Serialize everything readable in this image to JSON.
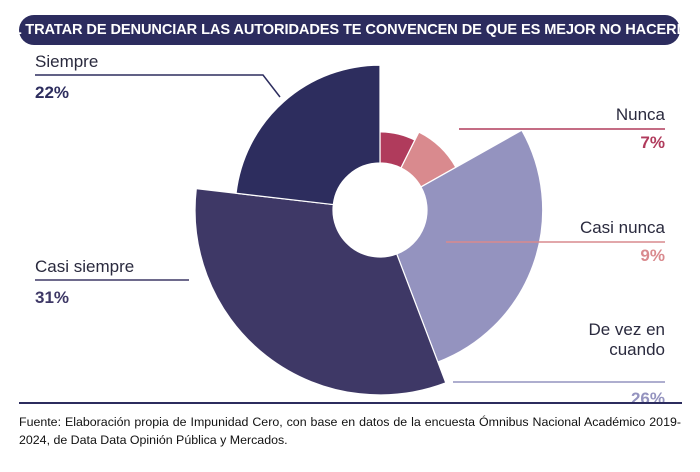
{
  "title": "¿AL TRATAR DE DENUNCIAR LAS AUTORIDADES TE CONVENCEN DE QUE ES MEJOR NO HACERLO?",
  "chart_data": {
    "type": "pie",
    "variant": "rose",
    "categories": [
      "Nunca",
      "Casi nunca",
      "De vez en cuando",
      "Casi siempre",
      "Siempre"
    ],
    "label_lines": [
      [
        "Nunca"
      ],
      [
        "Casi nunca"
      ],
      [
        "De vez en",
        "cuando"
      ],
      [
        "Casi siempre"
      ],
      [
        "Siempre"
      ]
    ],
    "values": [
      7,
      9,
      26,
      31,
      22
    ],
    "value_labels": [
      "7%",
      "9%",
      "26%",
      "31%",
      "22%"
    ],
    "colors": [
      "#b03b5c",
      "#d98a8e",
      "#9493bf",
      "#3e3866",
      "#2d2d5e"
    ],
    "label_colors": [
      "#b03b5c",
      "#d98a8e",
      "#9493bf",
      "#3e3866",
      "#2d2d5e"
    ]
  },
  "source": "Fuente: Elaboración propia de Impunidad Cero, con base en datos de la encuesta Ómnibus Nacional Académico 2019-2024, de Data Data Opinión Pública y Mercados."
}
